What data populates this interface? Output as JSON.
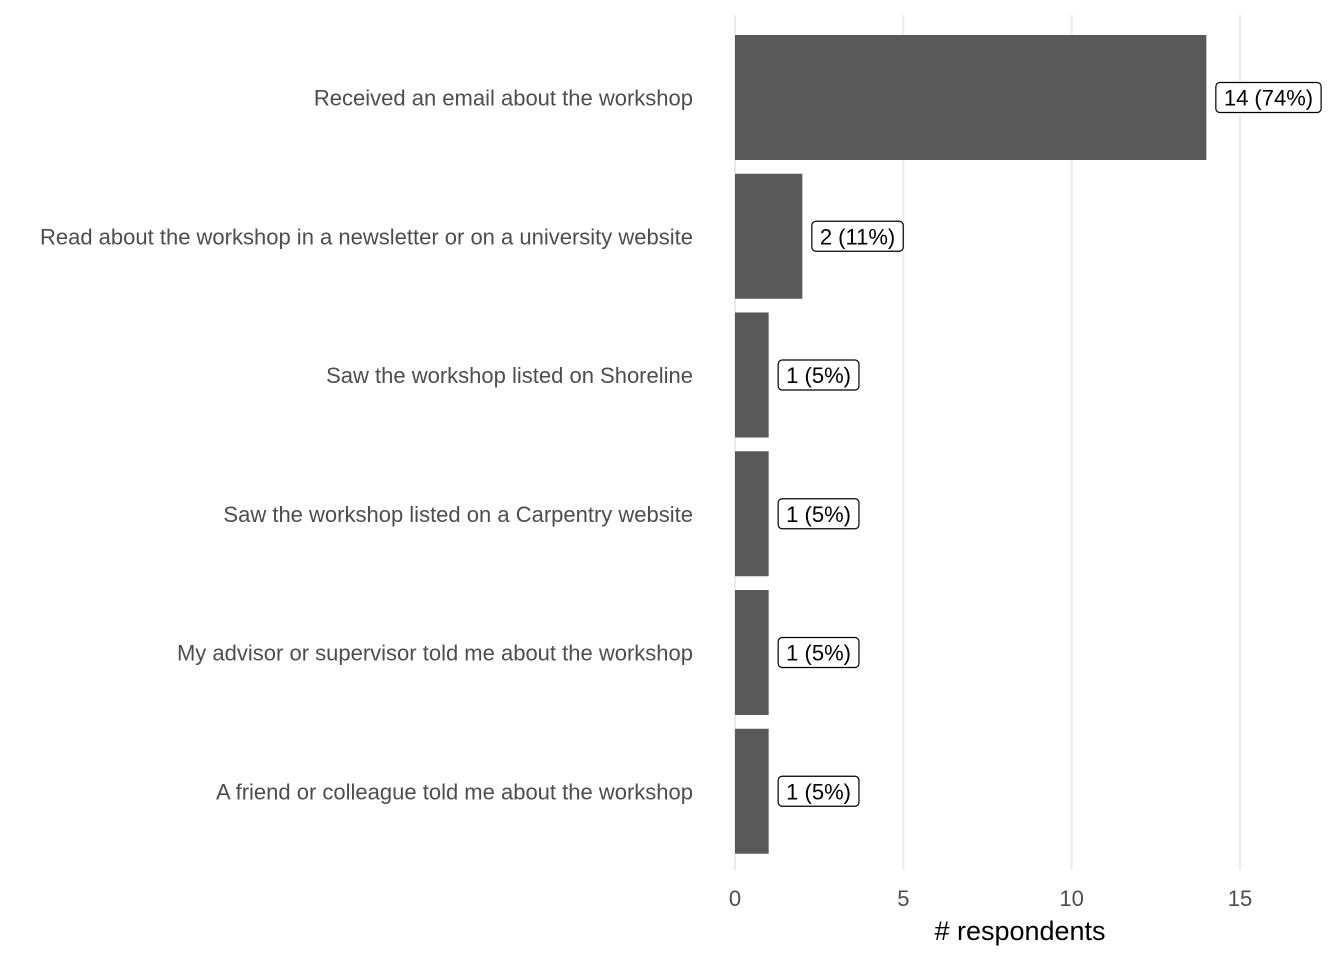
{
  "chart_data": {
    "type": "bar",
    "orientation": "horizontal",
    "categories": [
      "Received an email about the workshop",
      "Read about the workshop in a newsletter or on a university website",
      "Saw the workshop listed on Shoreline",
      "Saw the workshop listed on a Carpentry website",
      "My advisor or supervisor told me about the workshop",
      "A friend or colleague told me about the workshop"
    ],
    "values": [
      14,
      2,
      1,
      1,
      1,
      1
    ],
    "data_labels": [
      "14 (74%)",
      "2 (11%)",
      "1 (5%)",
      "1 (5%)",
      "1 (5%)",
      "1 (5%)"
    ],
    "title": "",
    "xlabel": "# respondents",
    "ylabel": "",
    "xlim": [
      0,
      17.5
    ],
    "xticks": [
      0,
      5,
      10,
      15
    ],
    "grid": "vertical",
    "legend": "none",
    "colors": {
      "bar": "#595959",
      "grid": "#ebebeb",
      "axis_text": "#4d4d4d",
      "background": "#ffffff"
    }
  }
}
